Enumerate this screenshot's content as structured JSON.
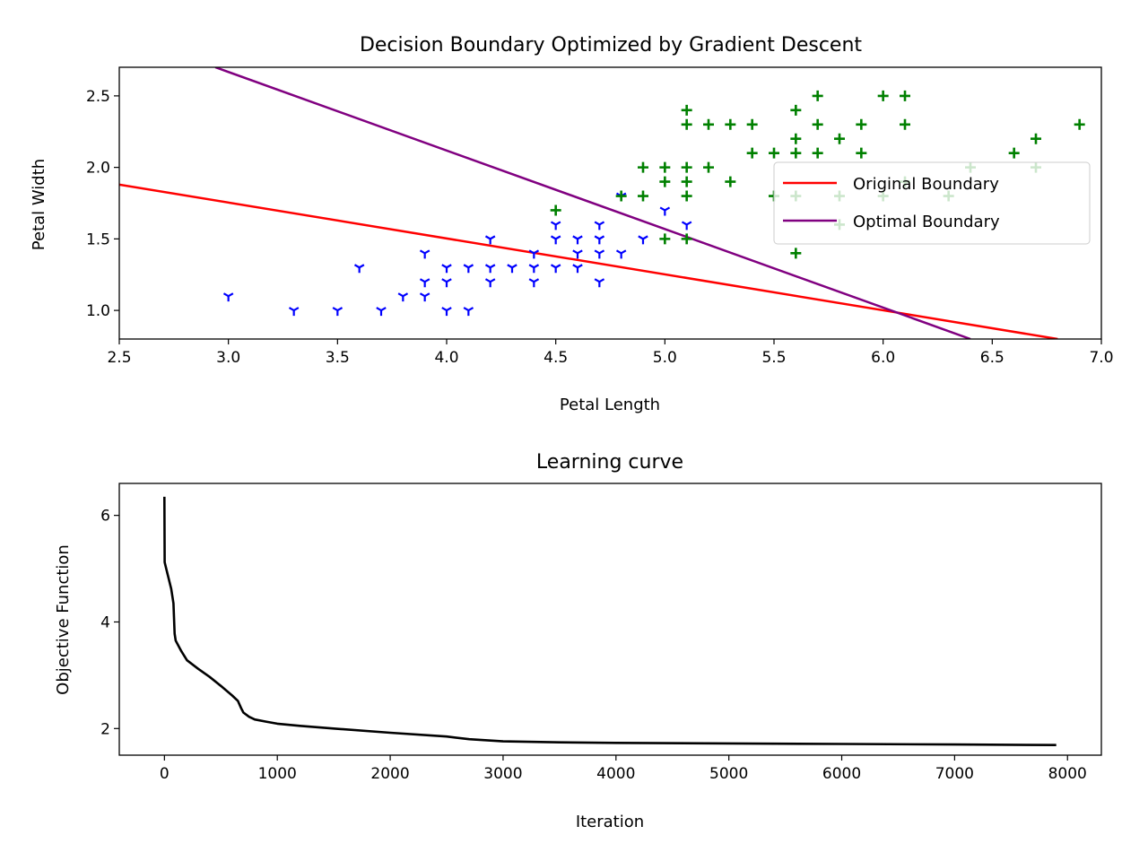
{
  "chart_data": [
    {
      "type": "scatter",
      "title": "Decision Boundary Optimized by Gradient Descent",
      "xlabel": "Petal Length",
      "ylabel": "Petal Width",
      "xlim": [
        2.5,
        7.0
      ],
      "ylim": [
        0.8,
        2.7
      ],
      "xticks": [
        "2.5",
        "3.0",
        "3.5",
        "4.0",
        "4.5",
        "5.0",
        "5.5",
        "6.0",
        "6.5",
        "7.0"
      ],
      "yticks": [
        "1.0",
        "1.5",
        "2.0",
        "2.5"
      ],
      "grid": false,
      "legend_position": "right",
      "scatter_series": [
        {
          "marker": "tri-down",
          "color": "#0000ff",
          "points": [
            [
              3.0,
              1.1
            ],
            [
              3.3,
              1.0
            ],
            [
              3.5,
              1.0
            ],
            [
              3.6,
              1.3
            ],
            [
              3.7,
              1.0
            ],
            [
              3.8,
              1.1
            ],
            [
              3.9,
              1.1
            ],
            [
              3.9,
              1.2
            ],
            [
              3.9,
              1.4
            ],
            [
              4.0,
              1.0
            ],
            [
              4.0,
              1.2
            ],
            [
              4.0,
              1.3
            ],
            [
              4.1,
              1.0
            ],
            [
              4.1,
              1.3
            ],
            [
              4.2,
              1.2
            ],
            [
              4.2,
              1.3
            ],
            [
              4.2,
              1.5
            ],
            [
              4.3,
              1.3
            ],
            [
              4.4,
              1.2
            ],
            [
              4.4,
              1.3
            ],
            [
              4.4,
              1.4
            ],
            [
              4.5,
              1.3
            ],
            [
              4.5,
              1.5
            ],
            [
              4.5,
              1.6
            ],
            [
              4.6,
              1.3
            ],
            [
              4.6,
              1.4
            ],
            [
              4.6,
              1.5
            ],
            [
              4.7,
              1.2
            ],
            [
              4.7,
              1.4
            ],
            [
              4.7,
              1.5
            ],
            [
              4.7,
              1.6
            ],
            [
              4.8,
              1.4
            ],
            [
              4.8,
              1.8
            ],
            [
              4.9,
              1.5
            ],
            [
              5.0,
              1.7
            ],
            [
              5.1,
              1.6
            ]
          ]
        },
        {
          "marker": "plus",
          "color": "#008000",
          "points": [
            [
              4.5,
              1.7
            ],
            [
              4.8,
              1.8
            ],
            [
              4.9,
              1.8
            ],
            [
              4.9,
              2.0
            ],
            [
              5.0,
              1.5
            ],
            [
              5.0,
              1.9
            ],
            [
              5.0,
              2.0
            ],
            [
              5.1,
              1.5
            ],
            [
              5.1,
              1.8
            ],
            [
              5.1,
              1.9
            ],
            [
              5.1,
              2.0
            ],
            [
              5.1,
              2.3
            ],
            [
              5.1,
              2.4
            ],
            [
              5.2,
              2.0
            ],
            [
              5.2,
              2.3
            ],
            [
              5.3,
              1.9
            ],
            [
              5.3,
              2.3
            ],
            [
              5.4,
              2.1
            ],
            [
              5.4,
              2.3
            ],
            [
              5.5,
              1.8
            ],
            [
              5.5,
              2.1
            ],
            [
              5.6,
              1.4
            ],
            [
              5.6,
              1.8
            ],
            [
              5.6,
              2.1
            ],
            [
              5.6,
              2.2
            ],
            [
              5.6,
              2.4
            ],
            [
              5.7,
              2.1
            ],
            [
              5.7,
              2.3
            ],
            [
              5.7,
              2.5
            ],
            [
              5.8,
              1.6
            ],
            [
              5.8,
              1.8
            ],
            [
              5.8,
              2.2
            ],
            [
              5.9,
              2.1
            ],
            [
              5.9,
              2.3
            ],
            [
              6.0,
              1.8
            ],
            [
              6.0,
              2.5
            ],
            [
              6.1,
              1.9
            ],
            [
              6.1,
              2.3
            ],
            [
              6.1,
              2.5
            ],
            [
              6.3,
              1.8
            ],
            [
              6.4,
              2.0
            ],
            [
              6.6,
              2.1
            ],
            [
              6.7,
              2.0
            ],
            [
              6.7,
              2.2
            ],
            [
              6.9,
              2.3
            ]
          ]
        }
      ],
      "series": [
        {
          "name": "Original Boundary",
          "color": "#ff0000",
          "x": [
            2.5,
            6.8
          ],
          "y": [
            1.88,
            0.8
          ]
        },
        {
          "name": "Optimal Boundary",
          "color": "#800080",
          "x": [
            2.94,
            6.4
          ],
          "y": [
            2.7,
            0.8
          ]
        }
      ]
    },
    {
      "type": "line",
      "title": "Learning curve",
      "xlabel": "Iteration",
      "ylabel": "Objective Function",
      "xlim": [
        -400,
        8300
      ],
      "ylim": [
        1.5,
        6.6
      ],
      "xticks": [
        "0",
        "1000",
        "2000",
        "3000",
        "4000",
        "5000",
        "6000",
        "7000",
        "8000"
      ],
      "yticks": [
        "2",
        "4",
        "6"
      ],
      "grid": false,
      "series": [
        {
          "color": "#000000",
          "x": [
            0,
            1,
            2,
            10,
            30,
            60,
            80,
            90,
            100,
            150,
            200,
            300,
            400,
            500,
            600,
            650,
            680,
            700,
            750,
            800,
            900,
            1000,
            1200,
            1500,
            2000,
            2500,
            2700,
            3000,
            3500,
            4000,
            5000,
            6000,
            7000,
            7900
          ],
          "y": [
            6.35,
            5.5,
            5.12,
            5.05,
            4.88,
            4.62,
            4.35,
            3.78,
            3.65,
            3.45,
            3.28,
            3.12,
            2.97,
            2.8,
            2.62,
            2.52,
            2.38,
            2.3,
            2.22,
            2.17,
            2.13,
            2.09,
            2.05,
            2.0,
            1.92,
            1.85,
            1.8,
            1.76,
            1.74,
            1.73,
            1.72,
            1.71,
            1.7,
            1.69
          ]
        }
      ]
    }
  ]
}
